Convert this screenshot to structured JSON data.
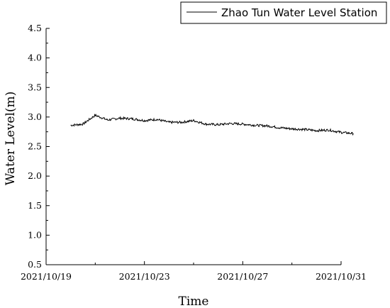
{
  "chart_data": {
    "type": "line",
    "xlabel": "Time",
    "ylabel": "Water Level(m)",
    "xlim": [
      "2021/10/19",
      "2021/10/31"
    ],
    "ylim": [
      0.5,
      4.5
    ],
    "xticks": [
      "2021/10/19",
      "2021/10/23",
      "2021/10/27",
      "2021/10/31"
    ],
    "yticks": [
      "0.5",
      "1.0",
      "1.5",
      "2.0",
      "2.5",
      "3.0",
      "3.5",
      "4.0",
      "4.5"
    ],
    "grid": false,
    "legend_position": "top-right",
    "series": [
      {
        "name": "Zhao Tun Water Level Station",
        "color": "#000000",
        "x": [
          "2021/10/20",
          "2021/10/20 12:00",
          "2021/10/21",
          "2021/10/21 12:00",
          "2021/10/22",
          "2021/10/22 12:00",
          "2021/10/23",
          "2021/10/23 12:00",
          "2021/10/24",
          "2021/10/24 12:00",
          "2021/10/25",
          "2021/10/25 12:00",
          "2021/10/26",
          "2021/10/26 12:00",
          "2021/10/27",
          "2021/10/27 12:00",
          "2021/10/28",
          "2021/10/28 12:00",
          "2021/10/29",
          "2021/10/29 12:00",
          "2021/10/30",
          "2021/10/30 12:00",
          "2021/10/31",
          "2021/10/31 12:00"
        ],
        "y": [
          2.86,
          2.88,
          3.03,
          2.95,
          2.98,
          2.97,
          2.94,
          2.96,
          2.91,
          2.91,
          2.94,
          2.88,
          2.87,
          2.89,
          2.88,
          2.86,
          2.85,
          2.82,
          2.8,
          2.79,
          2.77,
          2.78,
          2.74,
          2.72
        ]
      }
    ]
  }
}
